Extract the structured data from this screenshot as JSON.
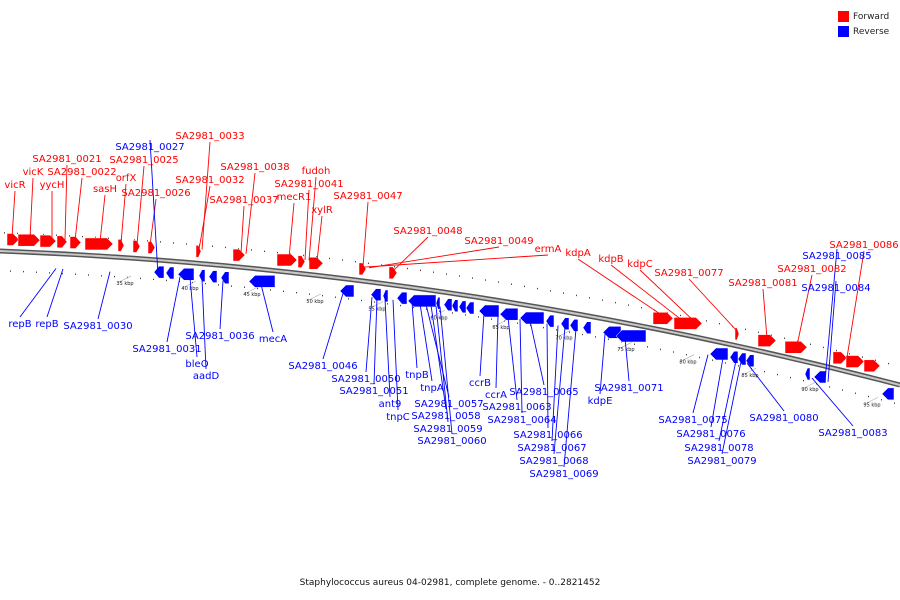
{
  "legend": {
    "forward_label": "Forward",
    "reverse_label": "Reverse",
    "forward_color": "#ff0000",
    "reverse_color": "#0000ff"
  },
  "caption": "Staphylococcus aureus 04-02981, complete genome. - 0..2821452",
  "ruler": [
    "35 kbp",
    "40 kbp",
    "45 kbp",
    "50 kbp",
    "55 kbp",
    "60 kbp",
    "65 kbp",
    "70 kbp",
    "75 kbp",
    "80 kbp",
    "85 kbp",
    "90 kbp",
    "95 kbp"
  ],
  "forward_labels": [
    "vicR",
    "vicK",
    "yycH",
    "SA2981_0021",
    "SA2981_0022",
    "sasH",
    "orfX",
    "SA2981_0025",
    "SA2981_0026",
    "SA2981_0032",
    "SA2981_0033",
    "SA2981_0037",
    "SA2981_0038",
    "mecR1",
    "SA2981_0041",
    "fudoh",
    "xylR",
    "SA2981_0047",
    "SA2981_0048",
    "SA2981_0049",
    "ermA",
    "kdpA",
    "kdpB",
    "kdpC",
    "SA2981_0077",
    "SA2981_0081",
    "SA2981_0082",
    "SA2981_0086"
  ],
  "reverse_labels": [
    "SA2981_0027",
    "repB",
    "repB",
    "SA2981_0030",
    "SA2981_0031",
    "bleO",
    "aadD",
    "SA2981_0036",
    "mecA",
    "SA2981_0046",
    "SA2981_0050",
    "SA2981_0051",
    "ant9",
    "tnpC",
    "tnpB",
    "tnpA",
    "SA2981_0057",
    "SA2981_0058",
    "SA2981_0059",
    "SA2981_0060",
    "ccrB",
    "ccrA",
    "SA2981_0063",
    "SA2981_0064",
    "SA2981_0065",
    "SA2981_0066",
    "SA2981_0067",
    "SA2981_0068",
    "SA2981_0069",
    "kdpE",
    "SA2981_0071",
    "SA2981_0075",
    "SA2981_0076",
    "SA2981_0078",
    "SA2981_0079",
    "SA2981_0080",
    "SA2981_0083",
    "SA2981_0084",
    "SA2981_0085"
  ]
}
